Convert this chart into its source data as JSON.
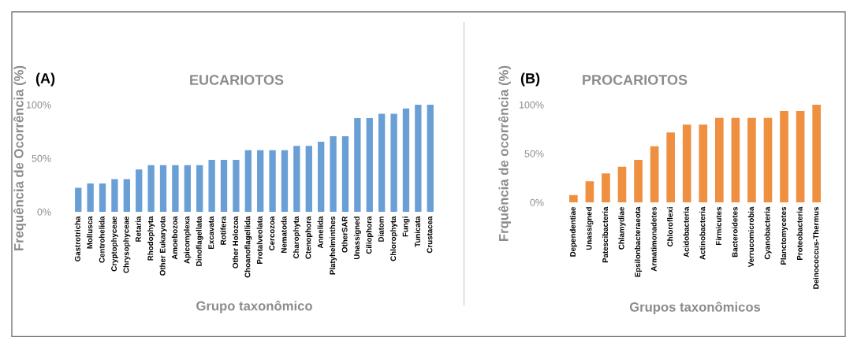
{
  "chart_data": [
    {
      "type": "bar",
      "title": "EUCARIOTOS",
      "xlabel": "Grupo taxonômico",
      "ylabel": "Frequência de Ocorrência (%)",
      "annotations": [
        "(A)"
      ],
      "categories": [
        "Gastrotricha",
        "Mollusca",
        "Centrohelida",
        "Cryptophyceae",
        "Chrysophyceae",
        "Retaria",
        "Rhodophyta",
        "Other Eukaryota",
        "Amoebozoa",
        "Apicomplexa",
        "Dinoflagellata",
        "Excavata",
        "Rotifera",
        "Other Holozoa",
        "Choanoflagellida",
        "Protalveolata",
        "Cercozoa",
        "Nematoda",
        "Charophyta",
        "Ctenophora",
        "Annelida",
        "Platyhelminthes",
        "OtherSAR",
        "Unassigned",
        "Ciliophora",
        "Diatom",
        "Chlorophyta",
        "Fungi",
        "Tunicata",
        "Crustacea"
      ],
      "values": [
        22,
        26,
        26,
        30,
        30,
        39,
        43,
        43,
        43,
        43,
        43,
        48,
        48,
        48,
        57,
        57,
        57,
        57,
        61,
        61,
        65,
        70,
        70,
        87,
        87,
        91,
        91,
        96,
        100,
        100
      ],
      "color": "#6a9fd6",
      "ylim": [
        0,
        100
      ],
      "yticks": [
        {
          "value": 0,
          "label": "0%"
        },
        {
          "value": 50,
          "label": "50%"
        },
        {
          "value": 100,
          "label": "100%"
        }
      ],
      "grid": false,
      "legend": false
    },
    {
      "type": "bar",
      "title": "PROCARIOTOS",
      "xlabel": "Grupos taxonômicos",
      "ylabel": "Frquência de ocorrência (%)",
      "annotations": [
        "(B)"
      ],
      "categories": [
        "Dependentiae",
        "Unassigned",
        "Patescibacteria",
        "Chlamydiae",
        "Epsilonbacteraeota",
        "Armatimonadetes",
        "Chloroflexi",
        "Acidobacteria",
        "Actinobacteria",
        "Firmicutes",
        "Bacteroidetes",
        "Verrucomicrobia",
        "Cyanobacteria",
        "Planctomycetes",
        "Proteobacteria",
        "Deinococcus-Thermus"
      ],
      "values": [
        7,
        21,
        29,
        36,
        43,
        57,
        71,
        79,
        79,
        86,
        86,
        86,
        86,
        93,
        93,
        100
      ],
      "color": "#ee9040",
      "ylim": [
        0,
        100
      ],
      "yticks": [
        {
          "value": 0,
          "label": "0%"
        },
        {
          "value": 50,
          "label": "50%"
        },
        {
          "value": 100,
          "label": "100%"
        }
      ],
      "grid": false,
      "legend": false
    }
  ]
}
